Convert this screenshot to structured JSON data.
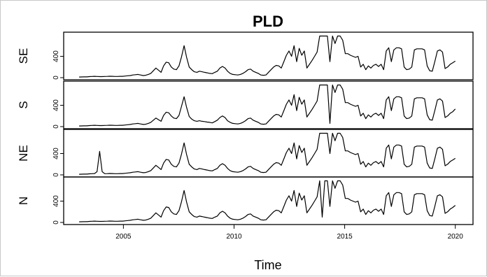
{
  "chart_data": {
    "type": "line",
    "title": "PLD",
    "xlabel": "Time",
    "x_ticks": [
      "2005",
      "2010",
      "2015",
      "2020"
    ],
    "y_ticks": [
      "0",
      "400"
    ],
    "xlim": [
      2002.3,
      2020.8
    ],
    "ylim": [
      0,
      800
    ],
    "x_start": 2003,
    "x_end": 2020,
    "series": [
      {
        "name": "SE",
        "values": [
          12,
          13,
          15,
          14,
          20,
          22,
          25,
          22,
          20,
          20,
          22,
          24,
          26,
          25,
          22,
          22,
          25,
          25,
          30,
          35,
          40,
          50,
          55,
          60,
          50,
          40,
          45,
          60,
          80,
          130,
          180,
          140,
          100,
          220,
          290,
          280,
          200,
          160,
          150,
          220,
          390,
          600,
          380,
          200,
          150,
          110,
          100,
          120,
          110,
          100,
          90,
          80,
          75,
          100,
          120,
          180,
          210,
          180,
          120,
          80,
          60,
          55,
          50,
          60,
          80,
          110,
          150,
          160,
          120,
          100,
          80,
          50,
          45,
          50,
          100,
          150,
          200,
          230,
          220,
          180,
          300,
          420,
          500,
          400,
          600,
          300,
          550,
          420,
          500,
          180,
          250,
          320,
          400,
          480,
          780,
          780,
          780,
          780,
          300,
          780,
          640,
          780,
          780,
          700,
          450,
          450,
          420,
          400,
          380,
          400,
          200,
          250,
          150,
          220,
          180,
          230,
          250,
          210,
          250,
          150,
          500,
          560,
          300,
          520,
          560,
          560,
          540,
          200,
          150,
          160,
          200,
          520,
          540,
          540,
          540,
          520,
          220,
          130,
          120,
          300,
          500,
          520,
          480,
          170,
          200,
          250,
          280,
          310
        ]
      },
      {
        "name": "S",
        "values": [
          12,
          13,
          15,
          14,
          20,
          22,
          25,
          22,
          20,
          20,
          22,
          24,
          26,
          25,
          22,
          22,
          25,
          25,
          30,
          35,
          40,
          50,
          55,
          60,
          50,
          40,
          45,
          60,
          80,
          120,
          160,
          130,
          100,
          210,
          270,
          260,
          200,
          160,
          150,
          210,
          380,
          560,
          360,
          190,
          140,
          110,
          100,
          110,
          100,
          95,
          85,
          80,
          70,
          95,
          120,
          170,
          200,
          170,
          110,
          80,
          60,
          55,
          50,
          60,
          80,
          110,
          150,
          160,
          120,
          100,
          80,
          50,
          45,
          50,
          100,
          150,
          200,
          230,
          220,
          180,
          300,
          420,
          500,
          400,
          600,
          300,
          550,
          420,
          500,
          180,
          250,
          320,
          400,
          480,
          780,
          780,
          780,
          780,
          60,
          780,
          640,
          780,
          780,
          700,
          450,
          450,
          420,
          400,
          380,
          400,
          200,
          250,
          150,
          220,
          180,
          230,
          250,
          210,
          250,
          150,
          500,
          560,
          300,
          520,
          560,
          560,
          540,
          200,
          150,
          160,
          200,
          520,
          540,
          540,
          540,
          520,
          220,
          130,
          120,
          300,
          500,
          520,
          480,
          170,
          200,
          250,
          280,
          330
        ]
      },
      {
        "name": "NE",
        "values": [
          12,
          13,
          15,
          14,
          20,
          22,
          25,
          60,
          440,
          60,
          22,
          24,
          26,
          25,
          22,
          22,
          25,
          25,
          30,
          35,
          40,
          50,
          55,
          60,
          50,
          40,
          45,
          60,
          80,
          130,
          180,
          140,
          100,
          220,
          290,
          280,
          200,
          160,
          150,
          220,
          390,
          600,
          380,
          200,
          150,
          110,
          100,
          120,
          110,
          100,
          90,
          80,
          75,
          100,
          120,
          180,
          210,
          180,
          120,
          80,
          60,
          55,
          50,
          60,
          80,
          110,
          150,
          160,
          120,
          100,
          80,
          50,
          45,
          50,
          100,
          150,
          200,
          230,
          220,
          180,
          300,
          420,
          500,
          400,
          600,
          300,
          550,
          420,
          500,
          180,
          250,
          320,
          400,
          480,
          780,
          780,
          780,
          780,
          400,
          780,
          640,
          780,
          780,
          700,
          450,
          450,
          420,
          400,
          380,
          400,
          200,
          250,
          150,
          220,
          180,
          230,
          250,
          210,
          250,
          150,
          500,
          560,
          300,
          520,
          560,
          560,
          540,
          200,
          150,
          160,
          200,
          520,
          540,
          540,
          540,
          520,
          220,
          130,
          120,
          300,
          500,
          520,
          480,
          170,
          200,
          250,
          280,
          310
        ]
      },
      {
        "name": "N",
        "values": [
          12,
          13,
          15,
          14,
          20,
          22,
          25,
          22,
          20,
          20,
          22,
          24,
          26,
          25,
          22,
          22,
          25,
          25,
          30,
          35,
          40,
          50,
          55,
          60,
          50,
          40,
          45,
          60,
          80,
          130,
          180,
          140,
          100,
          220,
          290,
          280,
          200,
          160,
          150,
          220,
          390,
          600,
          380,
          200,
          150,
          110,
          100,
          120,
          110,
          100,
          90,
          80,
          75,
          100,
          120,
          180,
          210,
          180,
          120,
          80,
          60,
          55,
          50,
          60,
          80,
          110,
          150,
          160,
          120,
          100,
          80,
          50,
          45,
          50,
          100,
          150,
          200,
          230,
          220,
          180,
          300,
          420,
          500,
          400,
          600,
          300,
          550,
          420,
          500,
          180,
          250,
          320,
          400,
          480,
          780,
          100,
          780,
          780,
          300,
          780,
          640,
          780,
          780,
          700,
          450,
          450,
          420,
          400,
          380,
          400,
          200,
          250,
          150,
          220,
          180,
          230,
          250,
          210,
          250,
          150,
          500,
          560,
          300,
          520,
          560,
          560,
          540,
          200,
          150,
          160,
          200,
          520,
          540,
          540,
          540,
          520,
          220,
          130,
          120,
          300,
          500,
          520,
          480,
          170,
          200,
          250,
          280,
          320
        ]
      }
    ]
  }
}
